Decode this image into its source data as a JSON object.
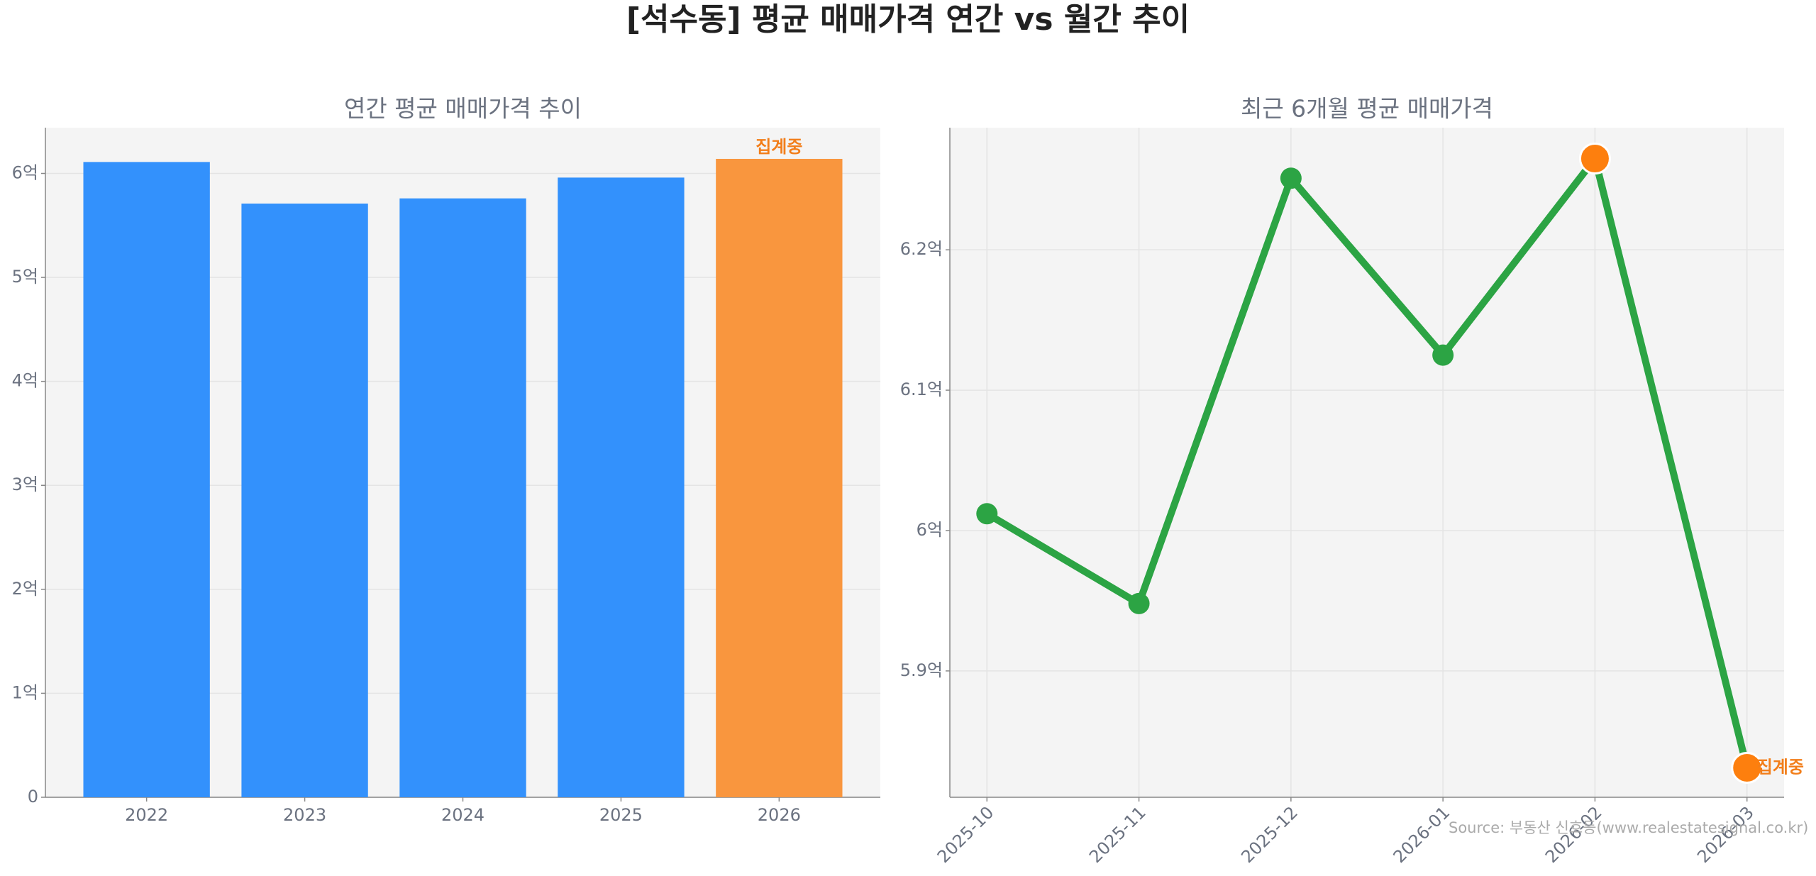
{
  "title": "[석수동] 평균 매매가격 연간 vs 월간 추이",
  "chart_data": [
    {
      "type": "bar",
      "title": "연간 평균 매매가격 추이",
      "categories": [
        "2022",
        "2023",
        "2024",
        "2025",
        "2026"
      ],
      "values": [
        6.11,
        5.71,
        5.76,
        5.96,
        6.14
      ],
      "colors": [
        "#3391fc",
        "#3391fc",
        "#3391fc",
        "#3391fc",
        "#f9963e"
      ],
      "ylim": [
        0,
        6.44
      ],
      "yticks": [
        0,
        {
          "value": 1,
          "label": "1억"
        },
        {
          "value": 2,
          "label": "2억"
        },
        {
          "value": 3,
          "label": "3억"
        },
        {
          "value": 4,
          "label": "4억"
        },
        {
          "value": 5,
          "label": "5억"
        },
        {
          "value": 6,
          "label": "6억"
        }
      ],
      "grid": true,
      "annotations": [
        {
          "text": "집계중",
          "at": "2026",
          "color": "#f27e1a"
        }
      ]
    },
    {
      "type": "line",
      "title": "최근 6개월 평균 매매가격",
      "categories": [
        "2025-10",
        "2025-11",
        "2025-12",
        "2026-01",
        "2026-02",
        "2026-03"
      ],
      "series": [
        {
          "color": "#2ca444",
          "values": [
            6.012,
            5.948,
            6.251,
            6.125,
            6.265,
            5.831
          ],
          "marker_colors": [
            "#2ca444",
            "#2ca444",
            "#2ca444",
            "#2ca444",
            "#fd7f0e",
            "#fd7f0e"
          ]
        }
      ],
      "ylim": [
        5.81,
        6.287
      ],
      "yticks": [
        {
          "value": 5.9,
          "label": "5.9억"
        },
        {
          "value": 6,
          "label": "6억"
        },
        {
          "value": 6.1,
          "label": "6.1억"
        },
        {
          "value": 6.2,
          "label": "6.2억"
        }
      ],
      "grid": true,
      "annotations": [
        {
          "text": "집계중",
          "at": "2026-03",
          "color": "#f27e1a"
        }
      ],
      "source": "Source: 부동산 신호등(www.realestatesignal.co.kr)"
    }
  ]
}
